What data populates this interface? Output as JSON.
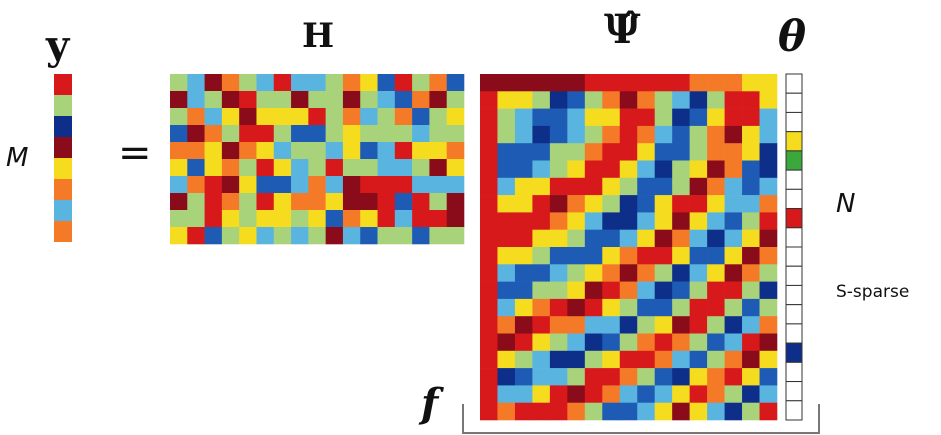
{
  "labels": {
    "y": "y",
    "H": "H",
    "psi": "Ψ̂",
    "theta": "θ",
    "M": "M",
    "equals": "=",
    "N": "N",
    "sparse": "S-sparse",
    "f": "f"
  },
  "colors": {
    "dark_red": "#8a0c1a",
    "red": "#d7191c",
    "orange": "#f57a28",
    "yellow": "#f6dc1e",
    "light_green": "#a9d37a",
    "cyan": "#5ab4e0",
    "blue": "#1e5bb4",
    "dark_blue": "#0d2f8a",
    "green": "#3aa83a",
    "white": "#ffffff"
  },
  "vector_y": [
    "red",
    "light_green",
    "dark_blue",
    "dark_red",
    "yellow",
    "orange",
    "cyan",
    "orange"
  ],
  "vector_theta": [
    "white",
    "white",
    "white",
    "yellow",
    "green",
    "white",
    "white",
    "red",
    "white",
    "white",
    "white",
    "white",
    "white",
    "white",
    "dark_blue",
    "white",
    "white",
    "white"
  ]
}
